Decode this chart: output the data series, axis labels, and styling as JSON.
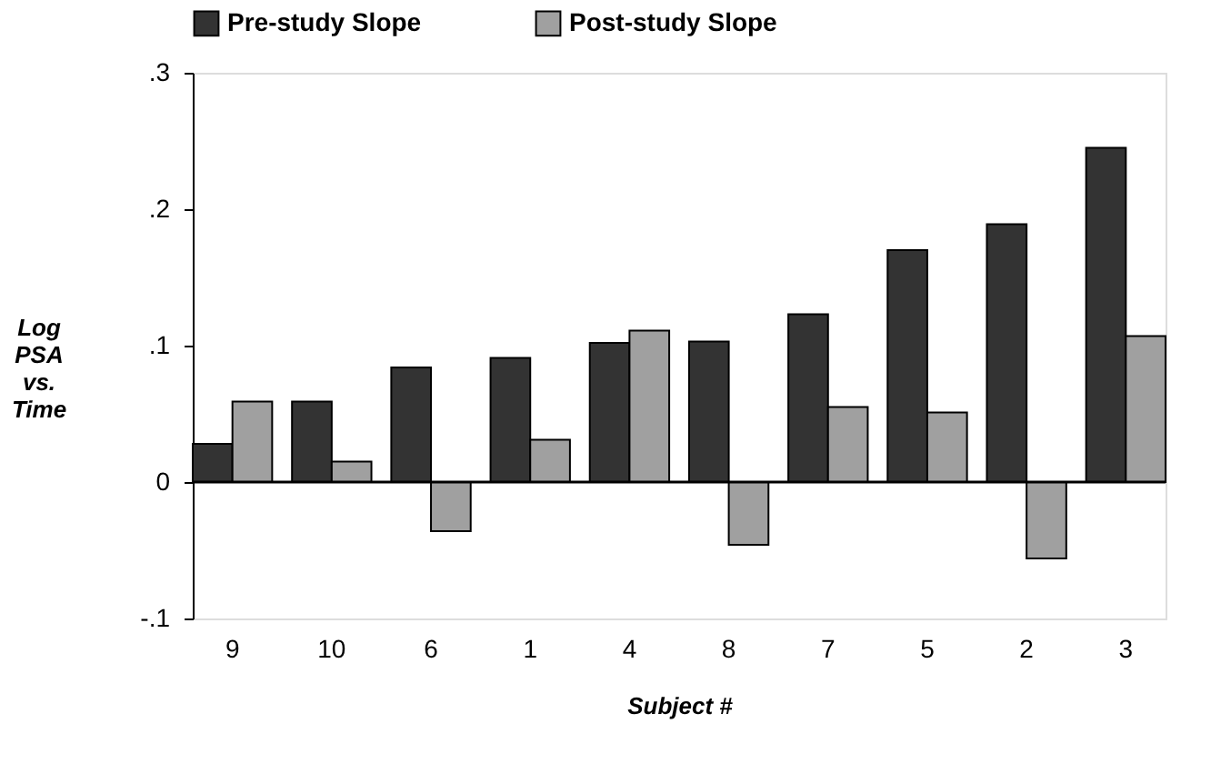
{
  "chart_data": {
    "type": "bar",
    "xlabel": "Subject #",
    "ylabel": "Log\nPSA\nvs.\nTime",
    "categories": [
      "9",
      "10",
      "6",
      "1",
      "4",
      "8",
      "7",
      "5",
      "2",
      "3"
    ],
    "series": [
      {
        "name": "Pre-study Slope",
        "color": "#333333",
        "values": [
          0.028,
          0.059,
          0.084,
          0.091,
          0.102,
          0.103,
          0.123,
          0.17,
          0.189,
          0.245
        ]
      },
      {
        "name": "Post-study Slope",
        "color": "#a0a0a0",
        "values": [
          0.059,
          0.015,
          -0.036,
          0.031,
          0.111,
          -0.046,
          0.055,
          0.051,
          -0.056,
          0.107
        ]
      }
    ],
    "ylim": [
      -0.1,
      0.3
    ],
    "yticks": [
      {
        "value": -0.1,
        "label": "-.1"
      },
      0,
      {
        "value": 0.1,
        "label": ".1"
      },
      {
        "value": 0.2,
        "label": ".2"
      },
      {
        "value": 0.3,
        "label": ".3"
      }
    ],
    "ref_lines": [
      {
        "axis": "y",
        "value": 0
      }
    ],
    "grid": false,
    "legend": "top"
  }
}
